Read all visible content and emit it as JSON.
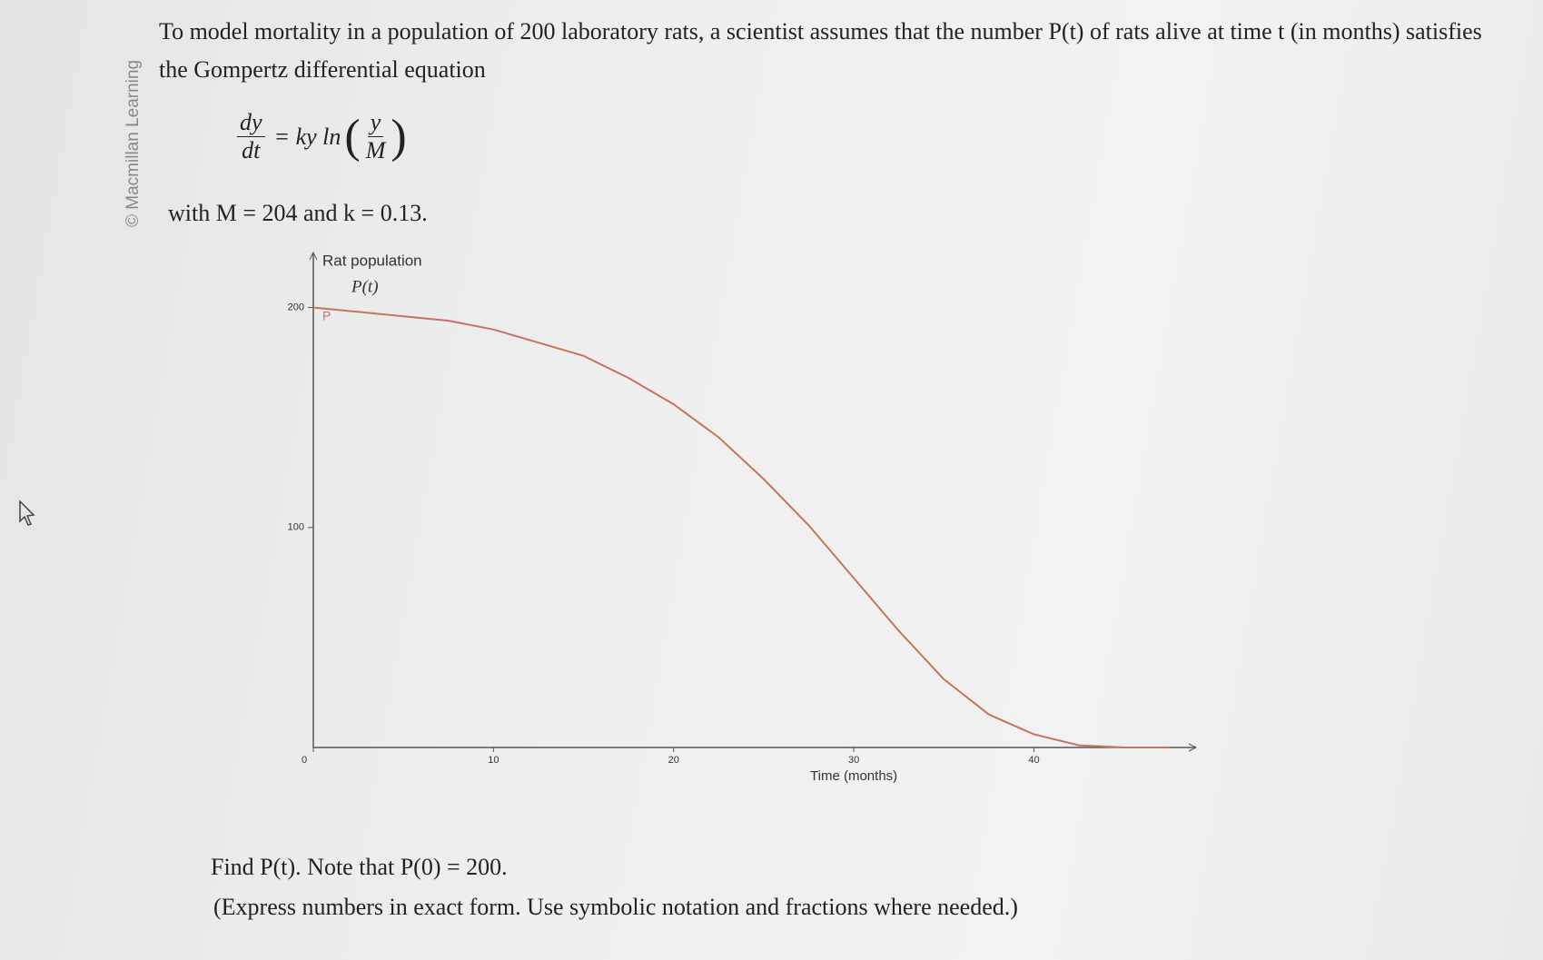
{
  "sidebar": "© Macmillan Learning",
  "intro": "To model mortality in a population of 200 laboratory rats, a scientist assumes that the number P(t) of rats alive at time t (in months) satisfies the Gompertz differential equation",
  "equation": {
    "numerator": "dy",
    "denominator": "dt",
    "middle": "= ky ln",
    "inner_numerator": "y",
    "inner_denominator": "M"
  },
  "given": "with M = 204 and k = 0.13.",
  "question": "Find P(t). Note that P(0) = 200.",
  "instruction": "(Express numbers in exact form. Use symbolic notation and fractions where needed.)",
  "chart_data": {
    "type": "line",
    "ylabel": "Rat population",
    "ylabel_symbol": "P(t)",
    "xlabel": "Time (months)",
    "annotation": "P",
    "x": [
      0,
      2.5,
      5,
      7.5,
      10,
      12.5,
      15,
      17.5,
      20,
      22.5,
      25,
      27.5,
      30,
      32.5,
      35,
      37.5,
      40,
      42.5,
      45,
      47.5
    ],
    "values": [
      200,
      198,
      196,
      194,
      190,
      184,
      178,
      168,
      156,
      141,
      122,
      101,
      77,
      53,
      31,
      15,
      6,
      1,
      0,
      0
    ],
    "color": "#c8735e",
    "xlim": [
      0,
      49
    ],
    "ylim": [
      0,
      225
    ],
    "xticks": [
      0,
      10,
      20,
      30,
      40
    ],
    "yticks": [
      100,
      200
    ]
  }
}
